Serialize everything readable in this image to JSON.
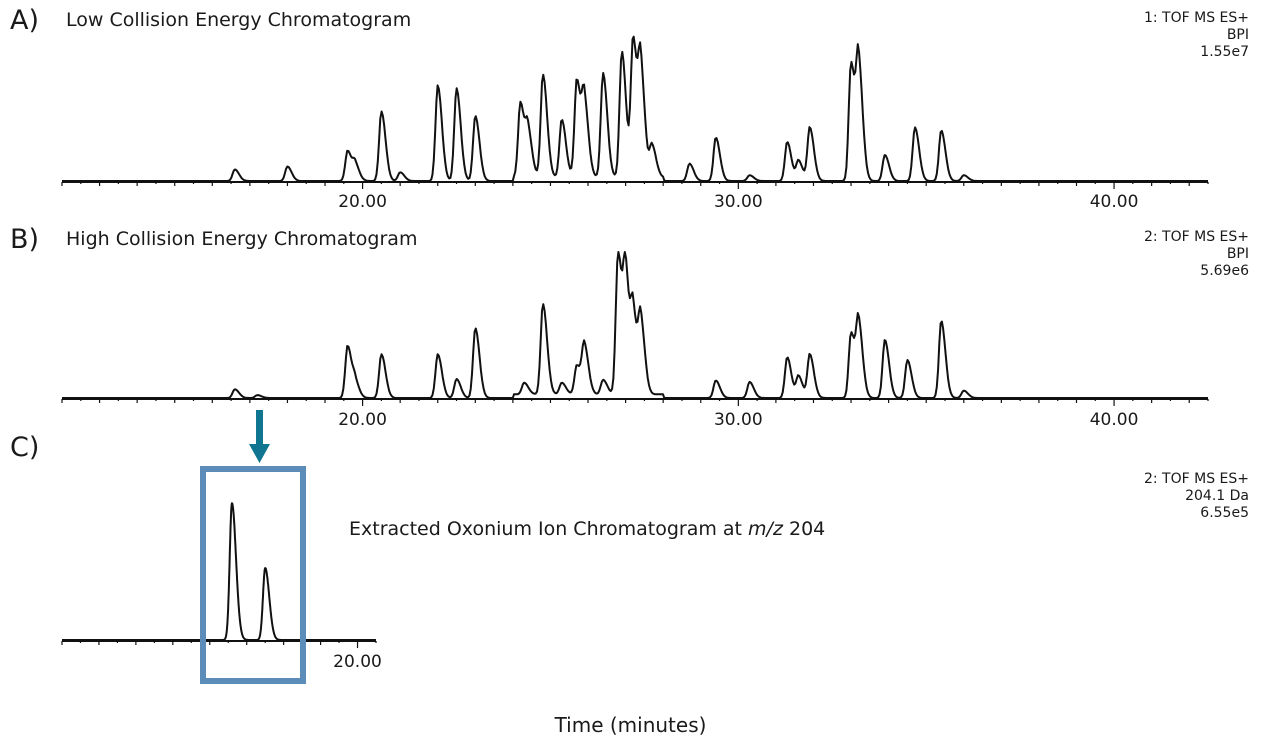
{
  "panels": {
    "a": {
      "letter": "A)",
      "title": "Low Collision Energy Chromatogram",
      "meta": [
        "1: TOF MS ES+",
        "BPI",
        "1.55e7"
      ]
    },
    "b": {
      "letter": "B)",
      "title": "High Collision Energy Chromatogram",
      "meta": [
        "2: TOF MS ES+",
        "BPI",
        "5.69e6"
      ]
    },
    "c": {
      "letter": "C)",
      "annotation_prefix": "Extracted Oxonium Ion Chromatogram at ",
      "annotation_italic": "m/z",
      "annotation_suffix": " 204",
      "meta": [
        "2: TOF MS ES+",
        "204.1 Da",
        "6.55e5"
      ]
    }
  },
  "x_axis_title": "Time (minutes)",
  "colors": {
    "trace": "#111111",
    "box": "#5b8db8",
    "arrow": "#0f7591"
  },
  "chart_data": [
    {
      "type": "line",
      "panel": "A",
      "title": "Low Collision Energy Chromatogram",
      "xlabel": "Time (minutes)",
      "xlim": [
        12.0,
        42.5
      ],
      "ylim": [
        0,
        100
      ],
      "xticks": [
        20,
        30,
        40
      ],
      "xtick_labels": [
        "20.00",
        "30.00",
        "40.00"
      ],
      "peaks": [
        {
          "x": 16.6,
          "y": 8
        },
        {
          "x": 18.0,
          "y": 10
        },
        {
          "x": 19.6,
          "y": 21
        },
        {
          "x": 19.8,
          "y": 11
        },
        {
          "x": 20.5,
          "y": 48
        },
        {
          "x": 21.0,
          "y": 6
        },
        {
          "x": 22.0,
          "y": 66
        },
        {
          "x": 22.5,
          "y": 64
        },
        {
          "x": 23.0,
          "y": 45
        },
        {
          "x": 24.2,
          "y": 52
        },
        {
          "x": 24.4,
          "y": 30
        },
        {
          "x": 24.8,
          "y": 71
        },
        {
          "x": 25.3,
          "y": 40
        },
        {
          "x": 25.7,
          "y": 68
        },
        {
          "x": 25.9,
          "y": 50
        },
        {
          "x": 26.4,
          "y": 72
        },
        {
          "x": 26.9,
          "y": 87
        },
        {
          "x": 27.2,
          "y": 96
        },
        {
          "x": 27.4,
          "y": 72
        },
        {
          "x": 27.7,
          "y": 22
        },
        {
          "x": 28.7,
          "y": 12
        },
        {
          "x": 29.4,
          "y": 30
        },
        {
          "x": 30.3,
          "y": 4
        },
        {
          "x": 31.3,
          "y": 27
        },
        {
          "x": 31.6,
          "y": 14
        },
        {
          "x": 31.9,
          "y": 37
        },
        {
          "x": 33.0,
          "y": 82
        },
        {
          "x": 33.2,
          "y": 77
        },
        {
          "x": 33.9,
          "y": 18
        },
        {
          "x": 34.7,
          "y": 37
        },
        {
          "x": 35.4,
          "y": 35
        },
        {
          "x": 36.0,
          "y": 4
        }
      ]
    },
    {
      "type": "line",
      "panel": "B",
      "title": "High Collision Energy Chromatogram",
      "xlabel": "Time (minutes)",
      "xlim": [
        12.0,
        42.5
      ],
      "ylim": [
        0,
        100
      ],
      "xticks": [
        20,
        30,
        40
      ],
      "xtick_labels": [
        "20.00",
        "30.00",
        "40.00"
      ],
      "peaks": [
        {
          "x": 16.6,
          "y": 6
        },
        {
          "x": 17.2,
          "y": 2
        },
        {
          "x": 19.6,
          "y": 36
        },
        {
          "x": 19.8,
          "y": 10
        },
        {
          "x": 20.5,
          "y": 30
        },
        {
          "x": 22.0,
          "y": 30
        },
        {
          "x": 22.5,
          "y": 13
        },
        {
          "x": 23.0,
          "y": 48
        },
        {
          "x": 24.3,
          "y": 8
        },
        {
          "x": 24.8,
          "y": 62
        },
        {
          "x": 25.3,
          "y": 8
        },
        {
          "x": 25.7,
          "y": 20
        },
        {
          "x": 25.9,
          "y": 33
        },
        {
          "x": 26.4,
          "y": 10
        },
        {
          "x": 26.8,
          "y": 98
        },
        {
          "x": 27.0,
          "y": 78
        },
        {
          "x": 27.2,
          "y": 52
        },
        {
          "x": 27.4,
          "y": 49
        },
        {
          "x": 29.4,
          "y": 12
        },
        {
          "x": 30.3,
          "y": 11
        },
        {
          "x": 31.3,
          "y": 28
        },
        {
          "x": 31.6,
          "y": 15
        },
        {
          "x": 31.9,
          "y": 30
        },
        {
          "x": 33.0,
          "y": 45
        },
        {
          "x": 33.2,
          "y": 49
        },
        {
          "x": 33.9,
          "y": 40
        },
        {
          "x": 34.5,
          "y": 26
        },
        {
          "x": 35.4,
          "y": 53
        },
        {
          "x": 36.0,
          "y": 5
        }
      ]
    },
    {
      "type": "line",
      "panel": "C",
      "xlabel": "Time (minutes)",
      "xlim": [
        12.0,
        20.5
      ],
      "ylim": [
        0,
        100
      ],
      "xticks": [
        20
      ],
      "xtick_labels": [
        "20.00"
      ],
      "peaks": [
        {
          "x": 16.6,
          "y": 95
        },
        {
          "x": 17.5,
          "y": 50
        }
      ]
    }
  ]
}
